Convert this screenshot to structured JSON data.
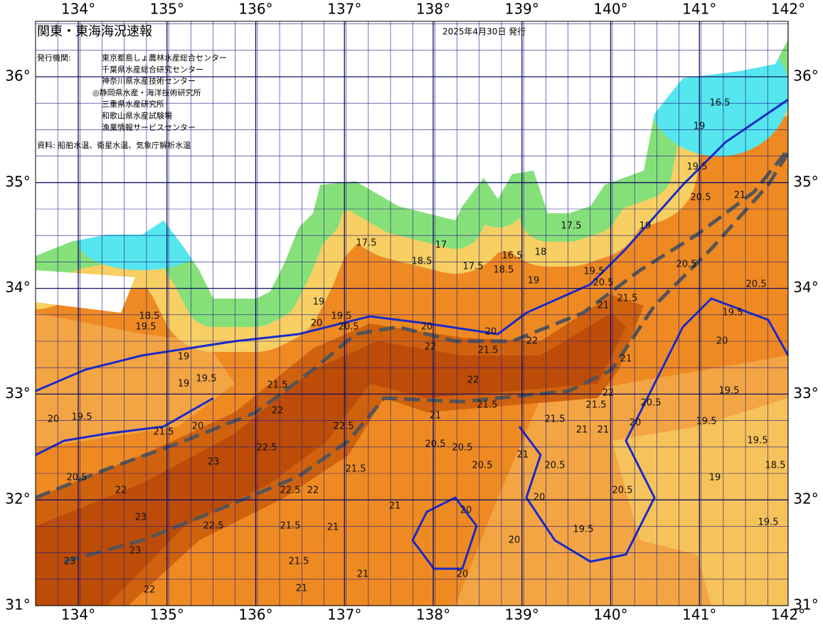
{
  "header": {
    "title": "関東・東海海況速報",
    "date": "2025年4月30日 発行"
  },
  "agencies": {
    "label": "発行機関:",
    "items": [
      "東京都島しょ農林水産総合センター",
      "千葉県水産総合研究センター",
      "神奈川県水産技術センター",
      "◎静岡県水産・海洋技術研究所",
      "三重県水産研究所",
      "和歌山県水産試験場",
      "漁業情報サービスセンター"
    ]
  },
  "source": "資料: 船舶水温、衛星水温、気象庁解析水温",
  "map": {
    "lon_ticks": [
      {
        "value": 134,
        "label": "134°"
      },
      {
        "value": 135,
        "label": "135°"
      },
      {
        "value": 136,
        "label": "136°"
      },
      {
        "value": 137,
        "label": "137°"
      },
      {
        "value": 138,
        "label": "138°"
      },
      {
        "value": 139,
        "label": "139°"
      },
      {
        "value": 140,
        "label": "140°"
      },
      {
        "value": 141,
        "label": "141°"
      },
      {
        "value": 142,
        "label": "142°"
      }
    ],
    "lat_ticks": [
      {
        "value": 36,
        "label": "36°"
      },
      {
        "value": 35,
        "label": "35°"
      },
      {
        "value": 34,
        "label": "34°"
      },
      {
        "value": 33,
        "label": "33°"
      },
      {
        "value": 32,
        "label": "32°"
      },
      {
        "value": 31,
        "label": "31°"
      }
    ],
    "contour_labels": [
      "16.5",
      "19",
      "19.5",
      "20.5",
      "21",
      "19",
      "17.5",
      "18",
      "16.5",
      "17.5",
      "18.5",
      "18.5",
      "17.5",
      "19",
      "19.5",
      "20.5",
      "21",
      "21.5",
      "20.5",
      "20.5",
      "19.5",
      "20",
      "19",
      "19.5",
      "20",
      "20.5",
      "20",
      "22",
      "22",
      "21.5",
      "20",
      "19",
      "19.5",
      "19",
      "21.5",
      "22",
      "22",
      "21.5",
      "20.5",
      "19.5",
      "20",
      "21",
      "19.5",
      "19",
      "18.5",
      "19.5",
      "19.5",
      "20.5",
      "19.5",
      "20",
      "20",
      "20",
      "20",
      "21",
      "21",
      "21",
      "21.5",
      "21",
      "22",
      "23",
      "23",
      "23",
      "22.5",
      "22",
      "22",
      "22.5",
      "21.5",
      "20.5",
      "20",
      "19.5",
      "20",
      "23",
      "22",
      "22.5",
      "22.5",
      "21.5",
      "21",
      "20.5",
      "20.5",
      "21.5",
      "21.5",
      "21",
      "21",
      "20.5",
      "20.5",
      "21.5",
      "19.5",
      "18.5",
      "17",
      "21"
    ]
  }
}
